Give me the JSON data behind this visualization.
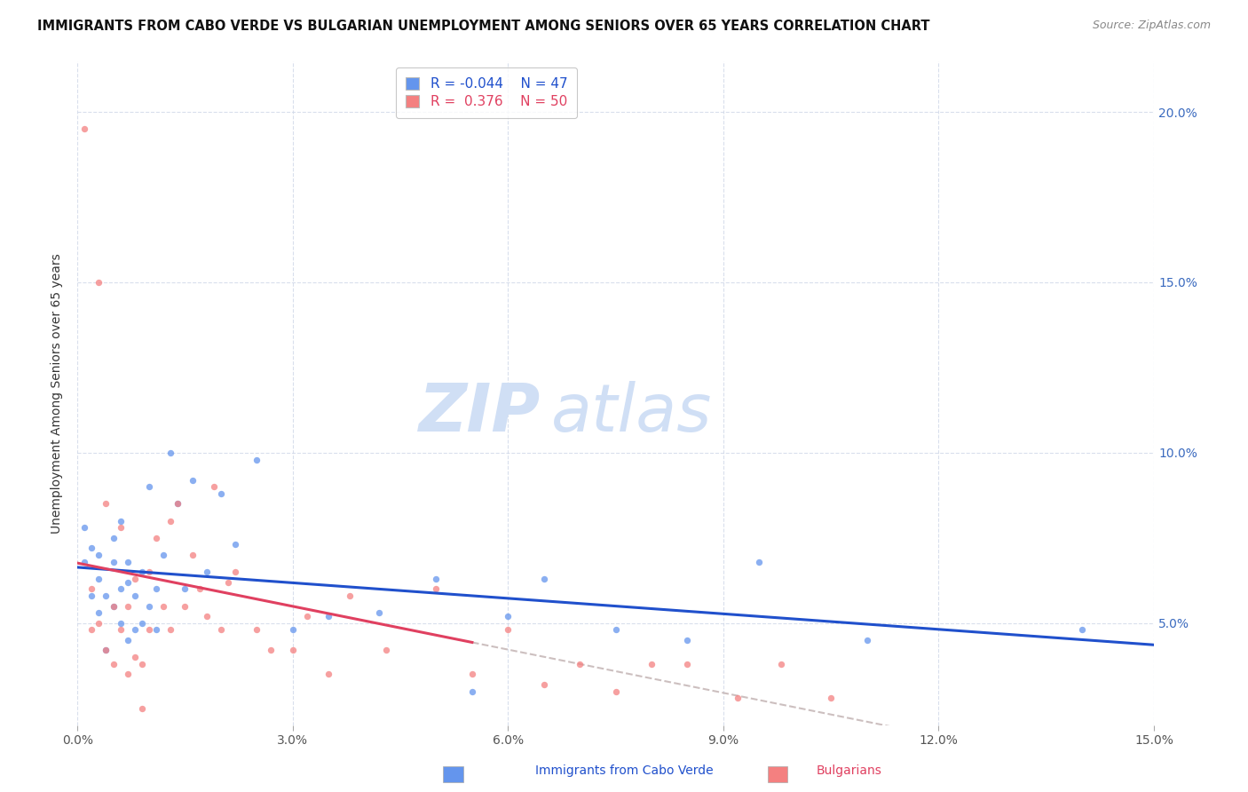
{
  "title": "IMMIGRANTS FROM CABO VERDE VS BULGARIAN UNEMPLOYMENT AMONG SENIORS OVER 65 YEARS CORRELATION CHART",
  "source": "Source: ZipAtlas.com",
  "ylabel": "Unemployment Among Seniors over 65 years",
  "legend_label1": "Immigrants from Cabo Verde",
  "legend_label2": "Bulgarians",
  "legend_r1": "-0.044",
  "legend_n1": "47",
  "legend_r2": "0.376",
  "legend_n2": "50",
  "color_blue": "#6495ED",
  "color_pink": "#F48080",
  "color_blue_line": "#2050cc",
  "color_pink_line": "#e04060",
  "color_dash": "#c0b0b0",
  "xlim": [
    0.0,
    0.15
  ],
  "ylim": [
    0.02,
    0.215
  ],
  "xtick_labels": [
    "0.0%",
    "3.0%",
    "6.0%",
    "9.0%",
    "12.0%",
    "15.0%"
  ],
  "xtick_vals": [
    0.0,
    0.03,
    0.06,
    0.09,
    0.12,
    0.15
  ],
  "ytick_labels_right": [
    "5.0%",
    "10.0%",
    "15.0%",
    "20.0%"
  ],
  "ytick_vals": [
    0.05,
    0.1,
    0.15,
    0.2
  ],
  "blue_x": [
    0.001,
    0.001,
    0.002,
    0.002,
    0.003,
    0.003,
    0.003,
    0.004,
    0.004,
    0.005,
    0.005,
    0.005,
    0.006,
    0.006,
    0.006,
    0.007,
    0.007,
    0.007,
    0.008,
    0.008,
    0.009,
    0.009,
    0.01,
    0.01,
    0.011,
    0.011,
    0.012,
    0.013,
    0.014,
    0.015,
    0.016,
    0.018,
    0.02,
    0.022,
    0.025,
    0.03,
    0.035,
    0.042,
    0.05,
    0.055,
    0.06,
    0.065,
    0.075,
    0.085,
    0.095,
    0.11,
    0.14
  ],
  "blue_y": [
    0.068,
    0.078,
    0.058,
    0.072,
    0.053,
    0.063,
    0.07,
    0.058,
    0.042,
    0.068,
    0.055,
    0.075,
    0.05,
    0.06,
    0.08,
    0.045,
    0.062,
    0.068,
    0.048,
    0.058,
    0.05,
    0.065,
    0.055,
    0.09,
    0.048,
    0.06,
    0.07,
    0.1,
    0.085,
    0.06,
    0.092,
    0.065,
    0.088,
    0.073,
    0.098,
    0.048,
    0.052,
    0.053,
    0.063,
    0.03,
    0.052,
    0.063,
    0.048,
    0.045,
    0.068,
    0.045,
    0.048
  ],
  "pink_x": [
    0.001,
    0.002,
    0.002,
    0.003,
    0.003,
    0.004,
    0.004,
    0.005,
    0.005,
    0.006,
    0.006,
    0.007,
    0.007,
    0.008,
    0.008,
    0.009,
    0.009,
    0.01,
    0.01,
    0.011,
    0.012,
    0.013,
    0.013,
    0.014,
    0.015,
    0.016,
    0.017,
    0.018,
    0.019,
    0.02,
    0.021,
    0.022,
    0.025,
    0.027,
    0.03,
    0.032,
    0.035,
    0.038,
    0.043,
    0.05,
    0.055,
    0.06,
    0.065,
    0.07,
    0.075,
    0.08,
    0.085,
    0.092,
    0.098,
    0.105
  ],
  "pink_y": [
    0.195,
    0.048,
    0.06,
    0.05,
    0.15,
    0.085,
    0.042,
    0.055,
    0.038,
    0.078,
    0.048,
    0.055,
    0.035,
    0.063,
    0.04,
    0.038,
    0.025,
    0.065,
    0.048,
    0.075,
    0.055,
    0.08,
    0.048,
    0.085,
    0.055,
    0.07,
    0.06,
    0.052,
    0.09,
    0.048,
    0.062,
    0.065,
    0.048,
    0.042,
    0.042,
    0.052,
    0.035,
    0.058,
    0.042,
    0.06,
    0.035,
    0.048,
    0.032,
    0.038,
    0.03,
    0.038,
    0.038,
    0.028,
    0.038,
    0.028
  ],
  "watermark_zip": "ZIP",
  "watermark_atlas": "atlas",
  "watermark_color": "#d0dff5",
  "figsize": [
    14.06,
    8.92
  ],
  "dpi": 100
}
